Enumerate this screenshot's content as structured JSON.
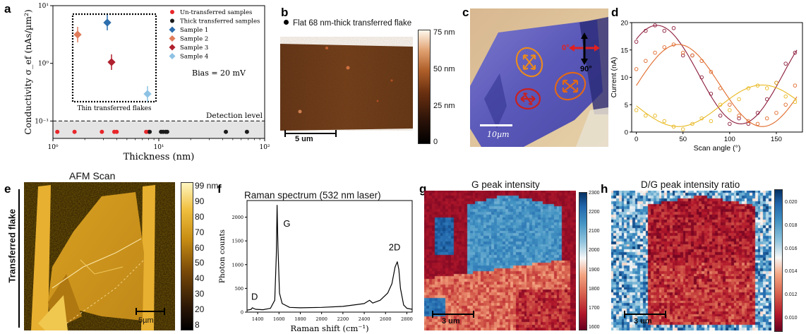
{
  "panels": {
    "a": {
      "label": "a",
      "xlabel": "Thickness (nm)",
      "ylabel": "Conductivity  σ_ef  (nAs/µm²)",
      "legend": [
        "Un-transferred samples",
        "Thick transferred samples",
        "Sample 1",
        "Sample 2",
        "Sample 3",
        "Sample 4"
      ],
      "bias_text": "Bias = 20 mV",
      "detection_text": "Detection level",
      "inset_caption": "Thin transferred flakes",
      "xticks": [
        "10⁰",
        "10¹",
        "10²"
      ],
      "yticks": [
        "10¹",
        "10⁰",
        "10⁻¹"
      ]
    },
    "b": {
      "label": "b",
      "legend": "Flat 68 nm-thick transferred flake",
      "scalebar": "5 um",
      "cbar": [
        "75 nm",
        "50 nm",
        "25 nm",
        "0"
      ]
    },
    "c": {
      "label": "c",
      "scalebar": "10µm",
      "angle0": "0°",
      "angle90": "90°"
    },
    "d": {
      "label": "d",
      "xlabel": "Scan angle (°)",
      "ylabel": "Current (nA)",
      "xticks": [
        "0",
        "50",
        "100",
        "150"
      ],
      "yticks": [
        "0",
        "5",
        "10",
        "15",
        "20"
      ]
    },
    "e": {
      "label": "e",
      "title": "AFM Scan",
      "side_label": "Transferred flake",
      "scalebar": "5µm",
      "cbar": [
        "99 nm",
        "90",
        "80",
        "70",
        "60",
        "50",
        "40",
        "30",
        "20",
        "8"
      ]
    },
    "f": {
      "label": "f",
      "title": "Raman spectrum (532 nm laser)",
      "xlabel": "Raman shift (cm⁻¹)",
      "ylabel": "Photon counts",
      "peak_D": "D",
      "peak_G": "G",
      "peak_2D": "2D",
      "xticks": [
        "1400",
        "1600",
        "1800",
        "2000",
        "2200",
        "2400",
        "2600",
        "2800"
      ],
      "yticks": [
        "0",
        "500",
        "1000",
        "1500",
        "2000"
      ]
    },
    "g": {
      "label": "g",
      "title": "G peak intensity",
      "scalebar": "3 um",
      "cbar": [
        "2300",
        "2200",
        "2100",
        "2000",
        "1900",
        "1800",
        "1700",
        "1600"
      ]
    },
    "h": {
      "label": "h",
      "title": "D/G peak intensity ratio",
      "scalebar": "3 um",
      "cbar": [
        "0.020",
        "0.018",
        "0.016",
        "0.014",
        "0.012",
        "0.010"
      ]
    }
  },
  "colors": {
    "untransferred": "#e8262a",
    "thick": "#1a1a1a",
    "sample1": "#2e6fae",
    "sample2": "#e07b5a",
    "sample3": "#b0202e",
    "sample4": "#8ec2e4",
    "d_dark": "#8b1a3a",
    "d_orange": "#e06a2a",
    "d_yellow": "#e8b820"
  },
  "chart_data": [
    {
      "type": "scatter",
      "panel": "a",
      "xscale": "log",
      "yscale": "log",
      "xlim": [
        1,
        100
      ],
      "ylim": [
        0.05,
        10
      ],
      "series": [
        {
          "name": "Un-transferred samples",
          "x": [
            1.1,
            1.6,
            2.9,
            3.8,
            4.0,
            7.6,
            8.0
          ],
          "y": [
            0.065,
            0.065,
            0.065,
            0.065,
            0.065,
            0.065,
            0.065
          ]
        },
        {
          "name": "Thick transferred samples",
          "x": [
            8.2,
            10.5,
            11.0,
            11.6,
            12.0,
            43,
            68
          ],
          "y": [
            0.065,
            0.065,
            0.065,
            0.065,
            0.065,
            0.065,
            0.065
          ]
        },
        {
          "name": "Sample 1",
          "x": [
            3.3
          ],
          "y": [
            4.5
          ]
        },
        {
          "name": "Sample 2",
          "x": [
            1.7
          ],
          "y": [
            2.8
          ]
        },
        {
          "name": "Sample 3",
          "x": [
            4.0
          ],
          "y": [
            1.1
          ]
        },
        {
          "name": "Sample 4",
          "x": [
            7.8
          ],
          "y": [
            0.3
          ]
        }
      ],
      "detection_level": 0.1
    },
    {
      "type": "line",
      "panel": "d",
      "xlim": [
        -5,
        178
      ],
      "ylim": [
        0,
        20
      ],
      "series": [
        {
          "name": "",
          "x": [
            0,
            10,
            20,
            30,
            40,
            50,
            60,
            70,
            80,
            90,
            100,
            110,
            120,
            130,
            140,
            150,
            160,
            170
          ],
          "y": [
            16.5,
            18.5,
            19.5,
            18.5,
            19,
            14,
            14,
            10,
            7,
            3,
            1.5,
            2.5,
            1.5,
            3.5,
            6,
            9,
            12.5,
            14.5
          ]
        },
        {
          "name": "",
          "x": [
            0,
            10,
            20,
            30,
            40,
            50,
            60,
            70,
            80,
            90,
            100,
            110,
            120,
            130,
            140,
            150,
            160,
            170
          ],
          "y": [
            11.5,
            13,
            14.5,
            15.5,
            16,
            14.5,
            14,
            13,
            11,
            8,
            5,
            3,
            2,
            1.5,
            2.5,
            3.5,
            5,
            8.5
          ]
        },
        {
          "name": "",
          "x": [
            0,
            10,
            20,
            30,
            40,
            50,
            60,
            70,
            80,
            90,
            100,
            110,
            120,
            130,
            140,
            150,
            160,
            170
          ],
          "y": [
            4,
            3,
            3,
            2,
            1,
            0.5,
            1.5,
            2.5,
            2,
            5,
            4,
            6,
            8,
            8.5,
            8,
            9,
            6.5,
            5.5
          ]
        }
      ]
    },
    {
      "type": "line",
      "panel": "f",
      "xlim": [
        1300,
        2850
      ],
      "ylim": [
        0,
        2350
      ],
      "series": [
        {
          "name": "",
          "x": [
            1300,
            1340,
            1350,
            1380,
            1450,
            1520,
            1560,
            1575,
            1582,
            1590,
            1605,
            1630,
            1700,
            1800,
            2000,
            2200,
            2400,
            2450,
            2480,
            2550,
            2620,
            2660,
            2690,
            2710,
            2725,
            2740,
            2770,
            2800,
            2850
          ],
          "y": [
            40,
            60,
            90,
            60,
            50,
            80,
            250,
            1200,
            2250,
            1400,
            400,
            180,
            100,
            90,
            100,
            120,
            180,
            250,
            190,
            250,
            400,
            600,
            950,
            1060,
            900,
            500,
            150,
            80,
            60
          ]
        }
      ]
    }
  ]
}
